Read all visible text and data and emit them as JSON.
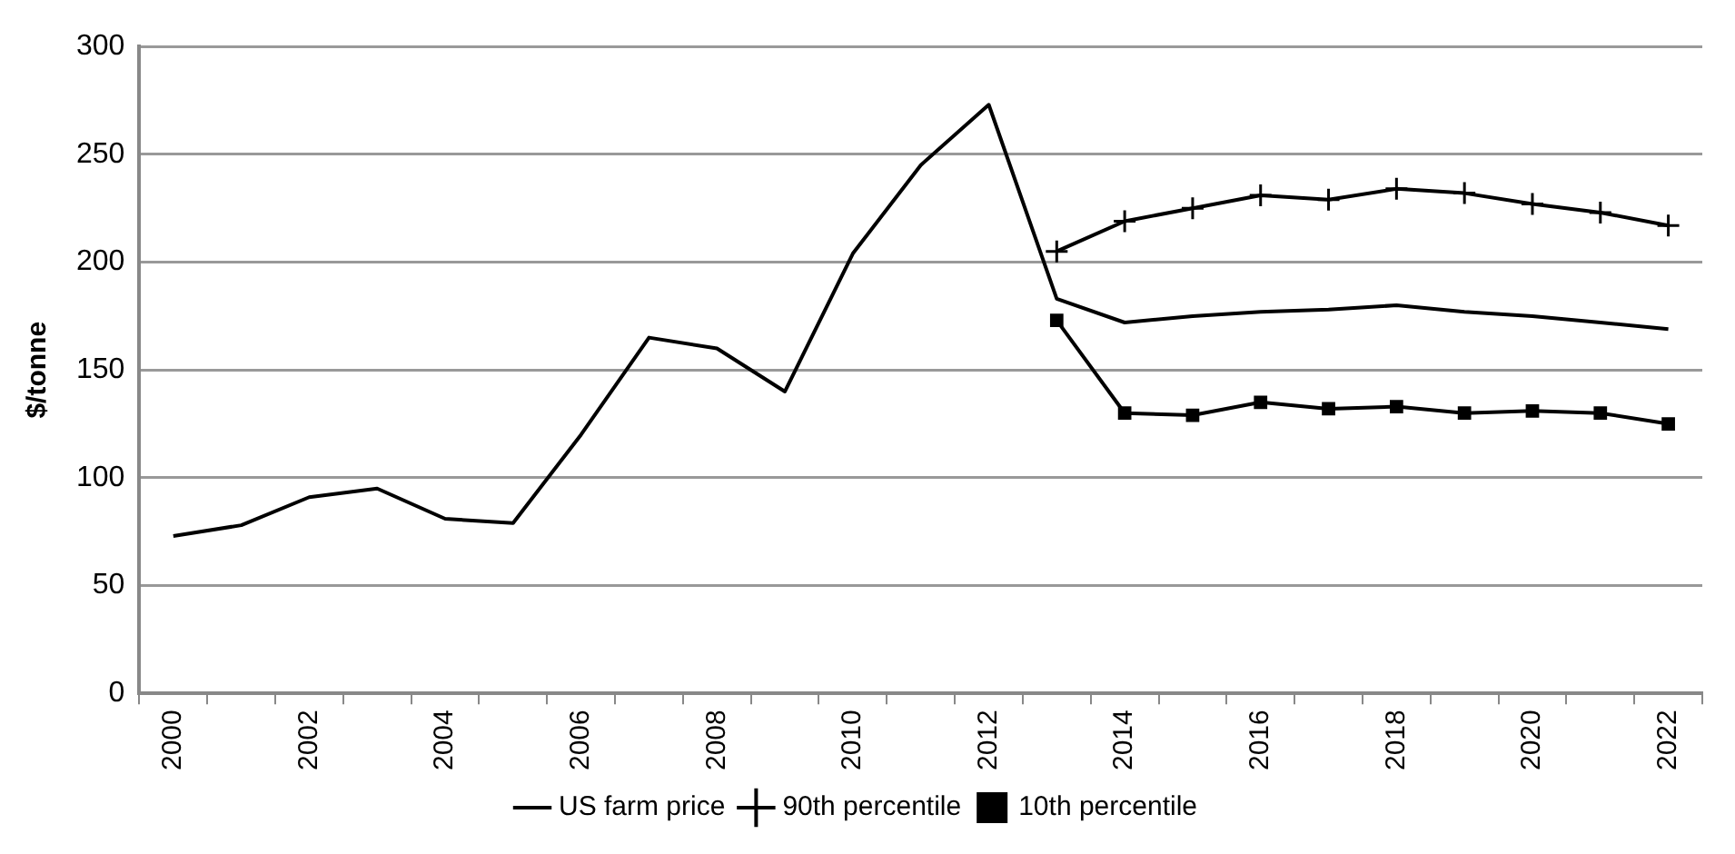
{
  "chart_data": {
    "type": "line",
    "ylabel": "$/tonne",
    "categories": [
      "2000",
      null,
      "2002",
      null,
      "2004",
      null,
      "2006",
      null,
      "2008",
      null,
      "2010",
      null,
      "2012",
      null,
      "2014",
      null,
      "2016",
      null,
      "2018",
      null,
      "2020",
      null,
      "2022"
    ],
    "ylim": [
      0,
      300
    ],
    "yticks": [
      0,
      50,
      100,
      150,
      200,
      250,
      300
    ],
    "grid": "y",
    "legend": "bottom",
    "series": [
      {
        "name": "US farm price",
        "color": "#000000",
        "marker": "none",
        "values": [
          73,
          78,
          91,
          95,
          81,
          79,
          120,
          165,
          160,
          140,
          204,
          245,
          273,
          183,
          172,
          175,
          177,
          178,
          180,
          177,
          175,
          172,
          169
        ]
      },
      {
        "name": "90th percentile",
        "color": "#000000",
        "marker": "cross",
        "values": [
          null,
          null,
          null,
          null,
          null,
          null,
          null,
          null,
          null,
          null,
          null,
          null,
          null,
          205,
          219,
          225,
          231,
          229,
          234,
          232,
          227,
          223,
          217
        ]
      },
      {
        "name": "10th percentile",
        "color": "#000000",
        "marker": "square",
        "values": [
          null,
          null,
          null,
          null,
          null,
          null,
          null,
          null,
          null,
          null,
          null,
          null,
          null,
          173,
          130,
          129,
          135,
          132,
          133,
          130,
          131,
          130,
          125
        ]
      }
    ]
  }
}
